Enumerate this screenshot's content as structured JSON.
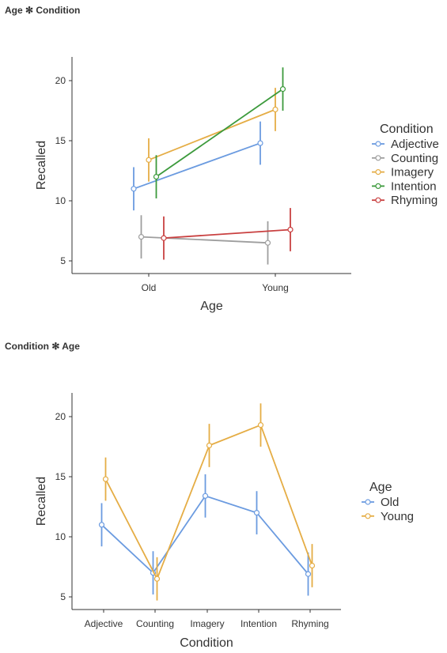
{
  "chart_data": [
    {
      "type": "line",
      "title": "Age ✻ Condition",
      "xlabel": "Age",
      "ylabel": "Recalled",
      "categories": [
        "Old",
        "Young"
      ],
      "yticks": [
        5,
        10,
        15,
        20
      ],
      "ylim": [
        3.9,
        22.0
      ],
      "grid": false,
      "legend_title": "Condition",
      "legend_position": "right",
      "series": [
        {
          "name": "Adjective",
          "color": "#6b9be0",
          "values": [
            11.0,
            14.8
          ],
          "lower": [
            9.2,
            13.0
          ],
          "upper": [
            12.8,
            16.6
          ]
        },
        {
          "name": "Counting",
          "color": "#9e9e9e",
          "values": [
            7.0,
            6.5
          ],
          "lower": [
            5.2,
            4.7
          ],
          "upper": [
            8.8,
            8.3
          ]
        },
        {
          "name": "Imagery",
          "color": "#e5ad45",
          "values": [
            13.4,
            17.6
          ],
          "lower": [
            11.6,
            15.8
          ],
          "upper": [
            15.2,
            19.4
          ]
        },
        {
          "name": "Intention",
          "color": "#3c9a3c",
          "values": [
            12.0,
            19.3
          ],
          "lower": [
            10.2,
            17.5
          ],
          "upper": [
            13.8,
            21.1
          ]
        },
        {
          "name": "Rhyming",
          "color": "#c94040",
          "values": [
            6.9,
            7.6
          ],
          "lower": [
            5.1,
            5.8
          ],
          "upper": [
            8.7,
            9.4
          ]
        }
      ]
    },
    {
      "type": "line",
      "title": "Condition ✻ Age",
      "xlabel": "Condition",
      "ylabel": "Recalled",
      "categories": [
        "Adjective",
        "Counting",
        "Imagery",
        "Intention",
        "Rhyming"
      ],
      "yticks": [
        5,
        10,
        15,
        20
      ],
      "ylim": [
        3.9,
        22.0
      ],
      "grid": false,
      "legend_title": "Age",
      "legend_position": "right",
      "series": [
        {
          "name": "Old",
          "color": "#6b9be0",
          "values": [
            11.0,
            7.0,
            13.4,
            12.0,
            6.9
          ],
          "lower": [
            9.2,
            5.2,
            11.6,
            10.2,
            5.1
          ],
          "upper": [
            12.8,
            8.8,
            15.2,
            13.8,
            8.7
          ]
        },
        {
          "name": "Young",
          "color": "#e5ad45",
          "values": [
            14.8,
            6.5,
            17.6,
            19.3,
            7.6
          ],
          "lower": [
            13.0,
            4.7,
            15.8,
            17.5,
            5.8
          ],
          "upper": [
            16.6,
            8.3,
            19.4,
            21.1,
            9.4
          ]
        }
      ]
    }
  ]
}
